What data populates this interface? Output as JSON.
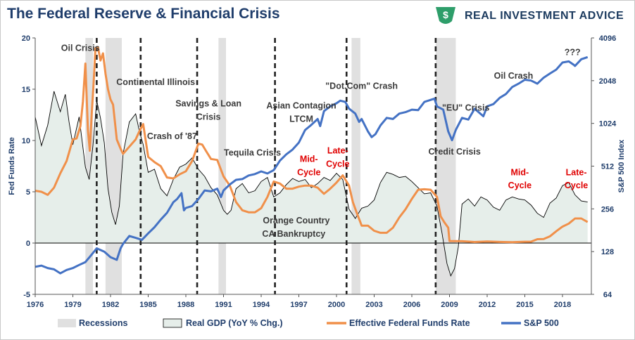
{
  "header": {
    "title": "The Federal Reserve & Financial Crisis",
    "logo_text": "REAL INVESTMENT ADVICE"
  },
  "colors": {
    "title": "#1f3d6b",
    "ffr": "#f0904a",
    "sp500": "#4472c4",
    "gdp_fill": "#e6eeea",
    "gdp_line": "#000000",
    "recession": "#e0e0e0",
    "annotation": "#3b3b3b",
    "annotation_red": "#e00000"
  },
  "chart_data": {
    "type": "line",
    "xlim": [
      1976,
      2020.3
    ],
    "x_ticks": [
      "1976",
      "1979",
      "1982",
      "1985",
      "1988",
      "1991",
      "1994",
      "1997",
      "2000",
      "2003",
      "2006",
      "2009",
      "2012",
      "2015",
      "2018"
    ],
    "y_left": {
      "label": "Fed Funds Rate",
      "lim": [
        -5,
        20
      ],
      "ticks": [
        "-5",
        "0",
        "5",
        "10",
        "15",
        "20"
      ]
    },
    "y_right": {
      "label": "S&P 500 Index",
      "scale": "log2",
      "lim": [
        64,
        4096
      ],
      "ticks": [
        "64",
        "128",
        "256",
        "512",
        "1024",
        "2048",
        "4096"
      ]
    },
    "recessions": [
      [
        1980.0,
        1980.6
      ],
      [
        1981.6,
        1982.9
      ],
      [
        1990.6,
        1991.2
      ],
      [
        2001.2,
        2001.9
      ],
      [
        2007.9,
        2009.5
      ]
    ],
    "crisis_lines": [
      1980.9,
      1984.4,
      1988.9,
      1995.1,
      2000.8,
      2007.9
    ],
    "series": [
      {
        "name": "Real GDP (YoY % Chg.)",
        "style": "area",
        "x": [
          1976,
          1976.5,
          1977,
          1977.5,
          1978,
          1978.4,
          1978.7,
          1979,
          1979.5,
          1980,
          1980.3,
          1980.6,
          1980.9,
          1981.2,
          1981.5,
          1981.8,
          1982.1,
          1982.4,
          1982.7,
          1983,
          1983.5,
          1984,
          1984.3,
          1984.6,
          1985,
          1985.5,
          1986,
          1986.5,
          1987,
          1987.5,
          1988,
          1988.5,
          1989,
          1989.5,
          1990,
          1990.5,
          1991,
          1991.3,
          1991.6,
          1992,
          1992.5,
          1993,
          1993.5,
          1994,
          1994.5,
          1995,
          1995.5,
          1996,
          1996.5,
          1997,
          1997.5,
          1998,
          1998.5,
          1999,
          1999.5,
          2000,
          2000.5,
          2001,
          2001.5,
          2002,
          2002.5,
          2003,
          2003.5,
          2004,
          2004.5,
          2005,
          2005.5,
          2006,
          2006.5,
          2007,
          2007.5,
          2008,
          2008.4,
          2008.8,
          2009.1,
          2009.4,
          2009.7,
          2010,
          2010.5,
          2011,
          2011.5,
          2012,
          2012.5,
          2013,
          2013.5,
          2014,
          2014.5,
          2015,
          2015.5,
          2016,
          2016.5,
          2017,
          2017.5,
          2018,
          2018.5,
          2019,
          2019.5,
          2020
        ],
        "values": [
          12.3,
          9.5,
          11.5,
          14.8,
          12.8,
          14.5,
          11.8,
          9.6,
          12.3,
          7.4,
          6.2,
          9.5,
          13.9,
          12.2,
          9.8,
          5.3,
          3.0,
          1.8,
          3.6,
          8.7,
          11.8,
          12.6,
          10.9,
          9.6,
          6.9,
          7.2,
          5.3,
          4.6,
          6.2,
          7.4,
          7.7,
          8.3,
          7.2,
          6.5,
          5.4,
          4.7,
          3.2,
          2.8,
          3.2,
          5.3,
          5.8,
          4.9,
          5.1,
          6.0,
          6.4,
          4.5,
          4.9,
          5.7,
          6.3,
          6.0,
          6.2,
          5.4,
          5.8,
          6.4,
          6.1,
          6.8,
          6.2,
          3.3,
          2.4,
          3.4,
          3.6,
          4.2,
          5.9,
          6.9,
          6.7,
          6.4,
          6.5,
          6.0,
          5.4,
          4.8,
          4.9,
          3.6,
          1.0,
          -2.0,
          -3.2,
          -2.5,
          -0.4,
          3.8,
          4.3,
          3.6,
          4.5,
          4.2,
          3.5,
          3.2,
          4.2,
          4.5,
          4.3,
          4.2,
          3.7,
          2.9,
          2.5,
          3.9,
          4.4,
          5.6,
          5.9,
          4.7,
          4.1,
          4.0
        ]
      },
      {
        "name": "Effective Federal Funds Rate",
        "style": "line",
        "x": [
          1976,
          1976.5,
          1977,
          1977.5,
          1978,
          1978.5,
          1979,
          1979.3,
          1979.6,
          1979.8,
          1980.0,
          1980.2,
          1980.35,
          1980.5,
          1980.65,
          1980.8,
          1981.0,
          1981.2,
          1981.4,
          1981.6,
          1981.8,
          1982.0,
          1982.2,
          1982.5,
          1982.8,
          1983,
          1983.5,
          1984,
          1984.3,
          1984.6,
          1985,
          1985.5,
          1986,
          1986.5,
          1987,
          1987.5,
          1988,
          1988.5,
          1989,
          1989.3,
          1989.6,
          1990,
          1990.5,
          1991,
          1991.5,
          1992,
          1992.5,
          1993,
          1993.5,
          1994,
          1994.5,
          1995,
          1995.5,
          1996,
          1996.5,
          1997,
          1997.5,
          1998,
          1998.5,
          1999,
          1999.5,
          2000,
          2000.5,
          2001,
          2001.3,
          2001.6,
          2002,
          2002.5,
          2003,
          2003.5,
          2004,
          2004.5,
          2005,
          2005.5,
          2006,
          2006.5,
          2007,
          2007.5,
          2008,
          2008.3,
          2008.6,
          2008.9,
          2009,
          2010,
          2011,
          2012,
          2013,
          2014,
          2015,
          2015.5,
          2016,
          2016.5,
          2017,
          2017.5,
          2018,
          2018.5,
          2019,
          2019.5,
          2020
        ],
        "values": [
          5.1,
          5.0,
          4.7,
          5.4,
          6.8,
          8.0,
          10.1,
          10.2,
          11.4,
          13.8,
          17.5,
          11.0,
          9.0,
          12.5,
          15.5,
          19.0,
          19.1,
          17.8,
          18.5,
          16.5,
          15.0,
          14.0,
          13.5,
          10.1,
          9.2,
          8.7,
          9.4,
          10.1,
          10.9,
          11.6,
          8.4,
          7.9,
          7.5,
          6.4,
          6.3,
          6.7,
          7.0,
          8.0,
          9.7,
          9.6,
          9.0,
          8.2,
          8.1,
          6.5,
          5.6,
          4.0,
          3.2,
          3.0,
          3.0,
          3.4,
          4.5,
          6.0,
          5.8,
          5.3,
          5.3,
          5.5,
          5.6,
          5.6,
          5.4,
          4.8,
          5.3,
          5.9,
          6.6,
          5.6,
          4.0,
          3.0,
          1.7,
          1.7,
          1.2,
          1.0,
          1.0,
          1.5,
          2.5,
          3.3,
          4.3,
          5.2,
          5.25,
          5.2,
          4.5,
          2.6,
          2.0,
          1.5,
          0.2,
          0.18,
          0.1,
          0.15,
          0.11,
          0.09,
          0.13,
          0.14,
          0.38,
          0.4,
          0.66,
          1.15,
          1.6,
          1.9,
          2.4,
          2.4,
          2.05
        ]
      },
      {
        "name": "S&P 500",
        "style": "line",
        "axis": "right",
        "x": [
          1976,
          1976.5,
          1977,
          1977.5,
          1978,
          1978.5,
          1979,
          1979.5,
          1980,
          1980.5,
          1980.9,
          1981.5,
          1982,
          1982.5,
          1982.8,
          1983,
          1983.5,
          1984,
          1984.5,
          1985,
          1985.5,
          1986,
          1986.5,
          1987,
          1987.3,
          1987.65,
          1987.85,
          1988,
          1988.5,
          1989,
          1989.5,
          1990,
          1990.5,
          1990.8,
          1991,
          1991.5,
          1992,
          1992.5,
          1993,
          1993.5,
          1994,
          1994.5,
          1995,
          1995.5,
          1996,
          1996.5,
          1997,
          1997.5,
          1998,
          1998.5,
          1998.7,
          1999,
          1999.5,
          2000,
          2000.3,
          2000.7,
          2001,
          2001.5,
          2001.8,
          2002,
          2002.5,
          2002.8,
          2003.1,
          2003.5,
          2004,
          2004.5,
          2005,
          2005.5,
          2006,
          2006.5,
          2007,
          2007.5,
          2007.8,
          2008,
          2008.5,
          2008.9,
          2009.2,
          2009.5,
          2010,
          2010.5,
          2011,
          2011.7,
          2012,
          2012.5,
          2013,
          2013.5,
          2014,
          2014.5,
          2015,
          2015.5,
          2016,
          2016.5,
          2017,
          2017.5,
          2018,
          2018.5,
          2018.9,
          2019,
          2019.5,
          2020
        ],
        "values": [
          100,
          102,
          98,
          96,
          90,
          95,
          98,
          103,
          108,
          122,
          135,
          128,
          117,
          112,
          135,
          145,
          165,
          160,
          155,
          172,
          190,
          215,
          240,
          285,
          300,
          330,
          250,
          260,
          268,
          300,
          345,
          340,
          355,
          310,
          345,
          380,
          410,
          415,
          440,
          450,
          470,
          455,
          480,
          560,
          620,
          670,
          750,
          920,
          1000,
          1100,
          980,
          1250,
          1350,
          1420,
          1480,
          1450,
          1300,
          1200,
          1050,
          1100,
          900,
          820,
          860,
          990,
          1120,
          1100,
          1200,
          1230,
          1280,
          1270,
          1450,
          1500,
          1530,
          1350,
          1280,
          900,
          780,
          920,
          1120,
          1090,
          1300,
          1150,
          1350,
          1400,
          1550,
          1650,
          1850,
          1950,
          2080,
          2050,
          1950,
          2150,
          2300,
          2450,
          2750,
          2800,
          2650,
          2600,
          2900,
          3000
        ]
      }
    ],
    "labels": [
      {
        "text": "Oil Crisis",
        "x": 1979.6,
        "y": 19.0,
        "red": false
      },
      {
        "text": "Continental Illinois",
        "x": 1985.6,
        "y": 15.7,
        "red": false
      },
      {
        "text": "Savings & Loan",
        "x": 1989.8,
        "y": 13.6,
        "red": false
      },
      {
        "text": "Crisis",
        "x": 1989.8,
        "y": 12.3,
        "red": false
      },
      {
        "text": "Crash of '87",
        "x": 1986.9,
        "y": 10.4,
        "red": false
      },
      {
        "text": "Tequila Crisis",
        "x": 1993.3,
        "y": 8.8,
        "red": false
      },
      {
        "text": "Asian Contagion",
        "x": 1997.2,
        "y": 13.4,
        "red": false
      },
      {
        "text": "LTCM",
        "x": 1997.2,
        "y": 12.1,
        "red": false
      },
      {
        "text": "\"Dot.Com\" Crash",
        "x": 2002.0,
        "y": 15.3,
        "red": false
      },
      {
        "text": "\"EU\" Crisis",
        "x": 2010.3,
        "y": 13.2,
        "red": false
      },
      {
        "text": "Oil Crash",
        "x": 2014.1,
        "y": 16.3,
        "red": false
      },
      {
        "text": "???",
        "x": 2018.8,
        "y": 18.6,
        "red": false
      },
      {
        "text": "Credit Crisis",
        "x": 2009.4,
        "y": 8.9,
        "red": false
      },
      {
        "text": "Orange Country",
        "x": 1996.8,
        "y": 2.2,
        "red": false
      },
      {
        "text": "CA Bankruptcy",
        "x": 1996.6,
        "y": 0.9,
        "red": false
      },
      {
        "text": "Mid-",
        "x": 1997.8,
        "y": 8.2,
        "red": true
      },
      {
        "text": "Cycle",
        "x": 1997.8,
        "y": 6.9,
        "red": true
      },
      {
        "text": "Late-",
        "x": 2000.1,
        "y": 9.0,
        "red": true
      },
      {
        "text": "Cycle",
        "x": 2000.1,
        "y": 7.7,
        "red": true
      },
      {
        "text": "Mid-",
        "x": 2014.6,
        "y": 6.9,
        "red": true
      },
      {
        "text": "Cycle",
        "x": 2014.6,
        "y": 5.6,
        "red": true
      },
      {
        "text": "Late-",
        "x": 2019.1,
        "y": 6.9,
        "red": true
      },
      {
        "text": "Cycle",
        "x": 2019.1,
        "y": 5.6,
        "red": true
      }
    ],
    "legend": {
      "position": "bottom",
      "items": [
        "Recessions",
        "Real GDP (YoY % Chg.)",
        "Effective Federal Funds Rate",
        "S&P 500"
      ]
    },
    "grid": false
  }
}
